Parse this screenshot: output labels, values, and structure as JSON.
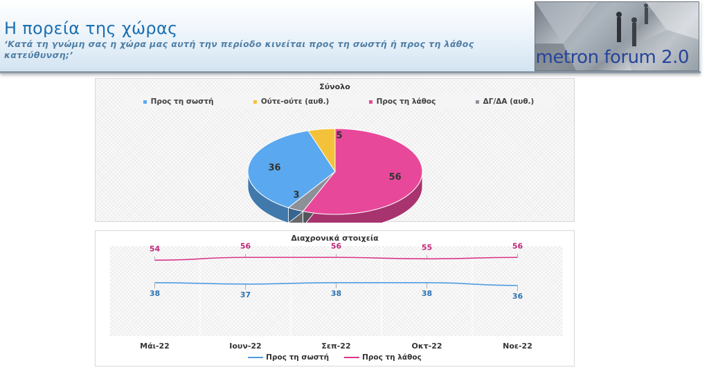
{
  "header": {
    "title": "Η πορεία της χώρας",
    "subtitle": "‘Κατά τη γνώμη σας η χώρα μας αυτή την περίοδο κινείται προς τη σωστή ή προς τη λάθος κατεύθυνση;’",
    "logo_text": "metron forum 2.0"
  },
  "colors": {
    "correct": "#5aa8ef",
    "neutral": "#f3c23a",
    "wrong": "#e8489a",
    "dk": "#8c9097",
    "line_correct": "#4e9be0",
    "line_wrong": "#d9348a",
    "label_correct": "#2f73b2",
    "label_wrong": "#c2267a"
  },
  "chart_data": [
    {
      "type": "pie",
      "title": "Σύνολο",
      "legend": [
        "Προς τη σωστή",
        "Ούτε-ούτε (αυθ.)",
        "Προς τη λάθος",
        "ΔΓ/ΔΑ (αυθ.)"
      ],
      "legend_position": "top",
      "slices": [
        {
          "label": "Προς τη σωστή",
          "value": 36
        },
        {
          "label": "Ούτε-ούτε (αυθ.)",
          "value": 5
        },
        {
          "label": "Προς τη λάθος",
          "value": 56
        },
        {
          "label": "ΔΓ/ΔΑ (αυθ.)",
          "value": 3
        }
      ],
      "style": "3d"
    },
    {
      "type": "line",
      "title": "Διαχρονικά στοιχεία",
      "categories": [
        "Μάι-22",
        "Ιουν-22",
        "Σεπ-22",
        "Οκτ-22",
        "Νοε-22"
      ],
      "series": [
        {
          "name": "Προς τη σωστή",
          "values": [
            38,
            37,
            38,
            38,
            36
          ]
        },
        {
          "name": "Προς τη λάθος",
          "values": [
            54,
            56,
            56,
            55,
            56
          ]
        }
      ],
      "legend_position": "bottom",
      "grid": true
    }
  ]
}
